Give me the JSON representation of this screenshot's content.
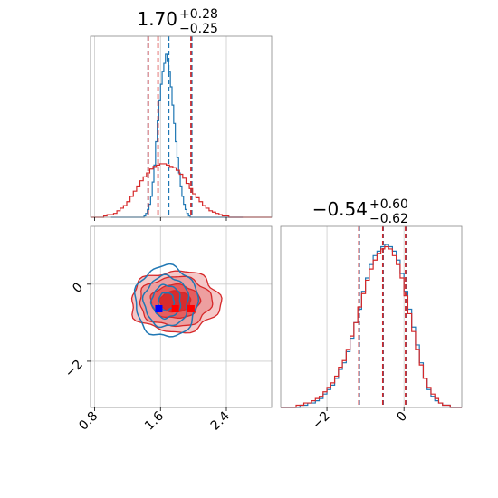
{
  "chart_data": [
    {
      "type": "histogram",
      "panel": "marginal-x",
      "title": {
        "value": "1.70",
        "plus": "+0.28",
        "minus": "−0.25"
      },
      "xlim": [
        0.75,
        2.95
      ],
      "grid": true,
      "series": [
        {
          "color": "#1f77b4",
          "quantiles": [
            1.45,
            1.7,
            1.98
          ],
          "bins": {
            "start": 1.0,
            "width": 0.02,
            "counts": [
              0,
              0,
              0,
              0,
              0,
              0,
              0,
              0,
              0,
              0,
              0,
              0,
              0,
              0,
              0,
              0,
              0,
              0,
              0,
              0,
              1,
              3,
              6,
              10,
              16,
              27,
              40,
              58,
              74,
              90,
              102,
              112,
              118,
              125,
              120,
              112,
              100,
              86,
              72,
              58,
              46,
              34,
              24,
              16,
              10,
              6,
              3,
              1,
              0,
              0,
              0,
              0,
              0,
              0,
              0,
              0,
              0,
              0,
              0,
              0,
              0,
              0,
              0,
              0,
              0,
              0,
              0,
              0,
              0,
              0,
              0,
              0,
              0,
              0,
              0,
              0,
              0,
              0,
              0,
              0
            ]
          }
        },
        {
          "color": "#d62728",
          "quantiles": [
            1.45,
            1.57,
            1.97
          ],
          "bins": {
            "start": 0.75,
            "width": 0.04,
            "counts": [
              0,
              0,
              0,
              0,
              1,
              2,
              2,
              3,
              5,
              7,
              9,
              12,
              16,
              20,
              24,
              28,
              31,
              34,
              37,
              39,
              40,
              41,
              41,
              40,
              39,
              38,
              36,
              33,
              30,
              26,
              22,
              18,
              15,
              12,
              9,
              7,
              5,
              4,
              3,
              2,
              1,
              1,
              0,
              0,
              0,
              0,
              0,
              0,
              0,
              0,
              0,
              0,
              0,
              0,
              0
            ]
          }
        }
      ]
    },
    {
      "type": "contour",
      "panel": "joint",
      "xlim": [
        0.75,
        2.95
      ],
      "ylim": [
        -3.2,
        1.5
      ],
      "xticks": [
        "0.8",
        "1.6",
        "2.4"
      ],
      "yticks": [
        "0",
        "−2"
      ],
      "grid": true,
      "series": [
        {
          "color": "#d62728",
          "filled": true,
          "center": [
            1.78,
            -0.45
          ],
          "sigma": [
            0.34,
            0.65
          ],
          "marker_x": [
            1.78,
            1.97
          ]
        },
        {
          "color": "#1f77b4",
          "filled": false,
          "center": [
            1.67,
            -0.45
          ],
          "sigma": [
            0.15,
            0.6
          ],
          "marker_x": [
            1.58
          ]
        }
      ]
    },
    {
      "type": "histogram",
      "panel": "marginal-y",
      "title": {
        "value": "−0.54",
        "plus": "+0.60",
        "minus": "−0.62"
      },
      "xlim": [
        -3.2,
        1.5
      ],
      "xticks": [
        "−2",
        "0"
      ],
      "grid": true,
      "series": [
        {
          "color": "#1f77b4",
          "quantiles": [
            -1.16,
            -0.54,
            0.06
          ],
          "bins": {
            "start": -3.2,
            "width": 0.1,
            "counts": [
              0,
              0,
              0,
              0,
              0,
              1,
              1,
              2,
              2,
              3,
              4,
              6,
              8,
              10,
              13,
              17,
              20,
              25,
              31,
              38,
              44,
              52,
              58,
              64,
              68,
              70,
              72,
              73,
              72,
              70,
              66,
              60,
              52,
              44,
              36,
              28,
              20,
              13,
              8,
              5,
              3,
              2,
              1,
              1,
              0,
              0,
              0
            ]
          }
        },
        {
          "color": "#d62728",
          "quantiles": [
            -1.17,
            -0.55,
            0.04
          ],
          "bins": {
            "start": -3.2,
            "width": 0.1,
            "counts": [
              0,
              0,
              0,
              0,
              1,
              1,
              2,
              2,
              3,
              4,
              5,
              7,
              9,
              11,
              14,
              18,
              21,
              26,
              32,
              38,
              45,
              51,
              57,
              62,
              66,
              69,
              71,
              72,
              71,
              68,
              64,
              58,
              50,
              42,
              34,
              26,
              19,
              13,
              9,
              6,
              4,
              2,
              1,
              1,
              0,
              0,
              0
            ]
          }
        }
      ]
    }
  ]
}
